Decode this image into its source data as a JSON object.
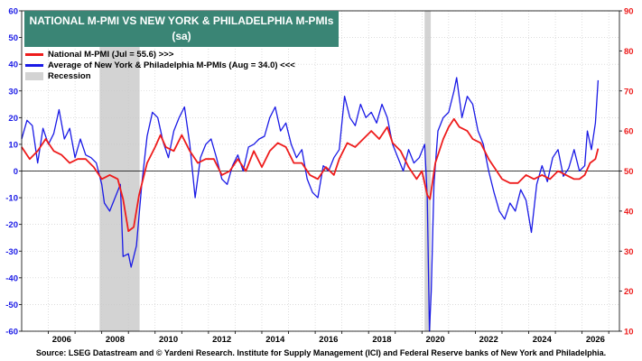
{
  "chart_data": {
    "type": "line",
    "title": "NATIONAL M-PMI VS NEW YORK & PHILADELPHIA M-PMIs",
    "subtitle": "(sa)",
    "legend": {
      "placement": "top-left",
      "entries": [
        {
          "label": "National M-PMI (Jul = 55.6) >>>",
          "color": "#ee1c1c"
        },
        {
          "label": "Average of New York & Philadelphia M-PMIs (Aug = 34.0) <<<",
          "color": "#1a1ae6"
        },
        {
          "label": "Recession",
          "color": "#d3d3d3"
        }
      ]
    },
    "x_axis": {
      "ticks": [
        "2006",
        "2008",
        "2010",
        "2012",
        "2014",
        "2016",
        "2018",
        "2020",
        "2022",
        "2024",
        "2026"
      ],
      "range": [
        2005.0,
        2027.4
      ]
    },
    "y_left": {
      "range": [
        -60,
        60
      ],
      "ticks": [
        "-60",
        "-50",
        "-40",
        "-30",
        "-20",
        "-10",
        "0",
        "10",
        "20",
        "30",
        "40",
        "50",
        "60"
      ],
      "color": "#1a1ae6"
    },
    "y_right": {
      "range": [
        10,
        90
      ],
      "ticks": [
        "10",
        "20",
        "30",
        "40",
        "50",
        "60",
        "70",
        "80",
        "90"
      ],
      "color": "#ee1c1c"
    },
    "recessions": [
      [
        2007.92,
        2009.42
      ],
      [
        2020.1,
        2020.33
      ]
    ],
    "series": [
      {
        "name": "Average of New York & Philadelphia M-PMIs",
        "axis": "left",
        "color": "#1a1ae6",
        "points": [
          [
            2005.0,
            12
          ],
          [
            2005.2,
            19
          ],
          [
            2005.4,
            17
          ],
          [
            2005.6,
            3
          ],
          [
            2005.8,
            16
          ],
          [
            2006.0,
            10
          ],
          [
            2006.2,
            14
          ],
          [
            2006.4,
            23
          ],
          [
            2006.6,
            12
          ],
          [
            2006.8,
            16
          ],
          [
            2007.0,
            5
          ],
          [
            2007.2,
            12
          ],
          [
            2007.4,
            6
          ],
          [
            2007.6,
            5
          ],
          [
            2007.8,
            3
          ],
          [
            2008.0,
            -5
          ],
          [
            2008.1,
            -12
          ],
          [
            2008.3,
            -15
          ],
          [
            2008.5,
            -10
          ],
          [
            2008.7,
            -5
          ],
          [
            2008.8,
            -32
          ],
          [
            2009.0,
            -31
          ],
          [
            2009.1,
            -36
          ],
          [
            2009.3,
            -28
          ],
          [
            2009.5,
            -5
          ],
          [
            2009.7,
            13
          ],
          [
            2009.9,
            22
          ],
          [
            2010.1,
            20
          ],
          [
            2010.3,
            11
          ],
          [
            2010.5,
            5
          ],
          [
            2010.7,
            15
          ],
          [
            2010.9,
            20
          ],
          [
            2011.1,
            24
          ],
          [
            2011.3,
            10
          ],
          [
            2011.5,
            -10
          ],
          [
            2011.7,
            5
          ],
          [
            2011.9,
            10
          ],
          [
            2012.1,
            12
          ],
          [
            2012.3,
            5
          ],
          [
            2012.5,
            -3
          ],
          [
            2012.7,
            -5
          ],
          [
            2012.9,
            2
          ],
          [
            2013.1,
            6
          ],
          [
            2013.3,
            0
          ],
          [
            2013.5,
            9
          ],
          [
            2013.7,
            10
          ],
          [
            2013.9,
            12
          ],
          [
            2014.1,
            13
          ],
          [
            2014.3,
            20
          ],
          [
            2014.5,
            24
          ],
          [
            2014.7,
            15
          ],
          [
            2014.9,
            18
          ],
          [
            2015.1,
            10
          ],
          [
            2015.3,
            5
          ],
          [
            2015.5,
            8
          ],
          [
            2015.7,
            -3
          ],
          [
            2015.9,
            -8
          ],
          [
            2016.1,
            -10
          ],
          [
            2016.3,
            2
          ],
          [
            2016.5,
            0
          ],
          [
            2016.7,
            5
          ],
          [
            2016.9,
            8
          ],
          [
            2017.1,
            28
          ],
          [
            2017.3,
            20
          ],
          [
            2017.5,
            17
          ],
          [
            2017.7,
            25
          ],
          [
            2017.9,
            20
          ],
          [
            2018.1,
            22
          ],
          [
            2018.3,
            18
          ],
          [
            2018.5,
            25
          ],
          [
            2018.7,
            20
          ],
          [
            2018.9,
            10
          ],
          [
            2019.1,
            5
          ],
          [
            2019.3,
            0
          ],
          [
            2019.5,
            8
          ],
          [
            2019.7,
            3
          ],
          [
            2019.9,
            5
          ],
          [
            2020.1,
            10
          ],
          [
            2020.2,
            -10
          ],
          [
            2020.28,
            -60
          ],
          [
            2020.35,
            -45
          ],
          [
            2020.45,
            -5
          ],
          [
            2020.6,
            15
          ],
          [
            2020.8,
            20
          ],
          [
            2021.0,
            22
          ],
          [
            2021.2,
            30
          ],
          [
            2021.3,
            35
          ],
          [
            2021.5,
            20
          ],
          [
            2021.7,
            28
          ],
          [
            2021.9,
            25
          ],
          [
            2022.1,
            15
          ],
          [
            2022.3,
            10
          ],
          [
            2022.5,
            0
          ],
          [
            2022.7,
            -8
          ],
          [
            2022.9,
            -15
          ],
          [
            2023.1,
            -18
          ],
          [
            2023.3,
            -12
          ],
          [
            2023.5,
            -15
          ],
          [
            2023.7,
            -7
          ],
          [
            2023.9,
            -11
          ],
          [
            2024.1,
            -23
          ],
          [
            2024.3,
            -5
          ],
          [
            2024.5,
            2
          ],
          [
            2024.7,
            -4
          ],
          [
            2024.9,
            5
          ],
          [
            2025.1,
            8
          ],
          [
            2025.3,
            -2
          ],
          [
            2025.5,
            1
          ],
          [
            2025.7,
            8
          ],
          [
            2025.9,
            0
          ],
          [
            2026.1,
            2
          ],
          [
            2026.2,
            15
          ],
          [
            2026.35,
            8
          ],
          [
            2026.5,
            18
          ],
          [
            2026.6,
            34
          ]
        ]
      },
      {
        "name": "National M-PMI",
        "axis": "right",
        "color": "#ee1c1c",
        "points": [
          [
            2005.0,
            56
          ],
          [
            2005.3,
            53
          ],
          [
            2005.6,
            55
          ],
          [
            2005.9,
            58
          ],
          [
            2006.2,
            55
          ],
          [
            2006.5,
            54
          ],
          [
            2006.8,
            52
          ],
          [
            2007.1,
            53
          ],
          [
            2007.4,
            53
          ],
          [
            2007.7,
            51
          ],
          [
            2008.0,
            48
          ],
          [
            2008.3,
            49
          ],
          [
            2008.6,
            48
          ],
          [
            2008.8,
            43
          ],
          [
            2009.0,
            35
          ],
          [
            2009.2,
            36
          ],
          [
            2009.4,
            44
          ],
          [
            2009.7,
            52
          ],
          [
            2010.0,
            56
          ],
          [
            2010.2,
            59
          ],
          [
            2010.4,
            56
          ],
          [
            2010.7,
            55
          ],
          [
            2011.0,
            59
          ],
          [
            2011.3,
            55
          ],
          [
            2011.6,
            52
          ],
          [
            2011.9,
            53
          ],
          [
            2012.2,
            53
          ],
          [
            2012.5,
            49
          ],
          [
            2012.8,
            50
          ],
          [
            2013.1,
            53
          ],
          [
            2013.4,
            50
          ],
          [
            2013.7,
            55
          ],
          [
            2014.0,
            51
          ],
          [
            2014.3,
            55
          ],
          [
            2014.6,
            57
          ],
          [
            2014.9,
            56
          ],
          [
            2015.2,
            52
          ],
          [
            2015.5,
            52
          ],
          [
            2015.8,
            49
          ],
          [
            2016.1,
            48
          ],
          [
            2016.4,
            51
          ],
          [
            2016.7,
            49
          ],
          [
            2016.9,
            53
          ],
          [
            2017.2,
            57
          ],
          [
            2017.5,
            56
          ],
          [
            2017.8,
            58
          ],
          [
            2018.1,
            60
          ],
          [
            2018.4,
            58
          ],
          [
            2018.7,
            61
          ],
          [
            2018.9,
            57
          ],
          [
            2019.2,
            55
          ],
          [
            2019.5,
            51
          ],
          [
            2019.8,
            48
          ],
          [
            2020.0,
            50
          ],
          [
            2020.2,
            44
          ],
          [
            2020.3,
            43
          ],
          [
            2020.5,
            52
          ],
          [
            2020.8,
            58
          ],
          [
            2021.0,
            61
          ],
          [
            2021.2,
            63
          ],
          [
            2021.4,
            61
          ],
          [
            2021.7,
            60
          ],
          [
            2021.9,
            58
          ],
          [
            2022.2,
            57
          ],
          [
            2022.5,
            53
          ],
          [
            2022.8,
            50
          ],
          [
            2023.0,
            48
          ],
          [
            2023.3,
            47
          ],
          [
            2023.6,
            47
          ],
          [
            2023.9,
            49
          ],
          [
            2024.2,
            48
          ],
          [
            2024.5,
            49
          ],
          [
            2024.8,
            48
          ],
          [
            2025.1,
            50
          ],
          [
            2025.4,
            49
          ],
          [
            2025.7,
            48
          ],
          [
            2025.9,
            48
          ],
          [
            2026.1,
            49
          ],
          [
            2026.3,
            52
          ],
          [
            2026.5,
            53
          ],
          [
            2026.6,
            55.6
          ]
        ]
      }
    ],
    "grid": true
  },
  "source": "Source: LSEG Datastream and © Yardeni Research. Institute for Supply Management (ICI) and Federal Reserve banks of New York and Philadelphia."
}
